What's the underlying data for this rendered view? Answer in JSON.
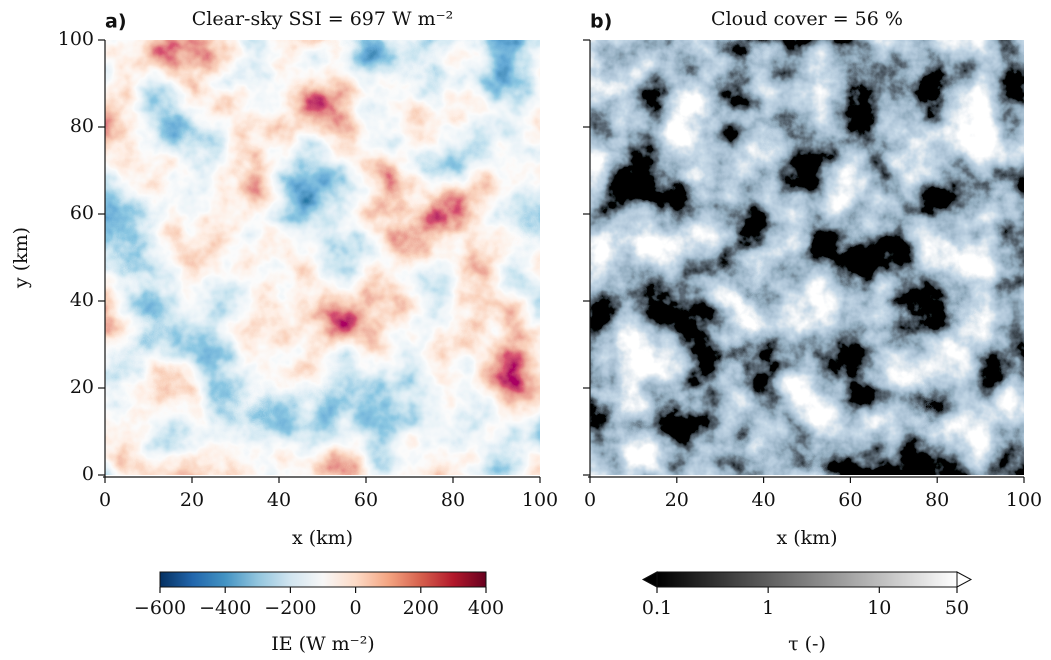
{
  "chart_data": [
    {
      "type": "heatmap",
      "panel_label": "a)",
      "title": "Clear-sky SSI = 697 W m⁻²",
      "xlabel": "x (km)",
      "ylabel": "y (km)",
      "xlim": [
        0,
        100
      ],
      "ylim": [
        0,
        100
      ],
      "xticks": [
        0,
        20,
        40,
        60,
        80,
        100
      ],
      "yticks": [
        0,
        20,
        40,
        60,
        80,
        100
      ],
      "ytick_labels": true,
      "cmap": "RdBu_r",
      "colorbar": {
        "label": "IE (W m⁻²)",
        "lim": [
          -600,
          400
        ],
        "scale": "linear",
        "extend": "neither",
        "ticks": [
          {
            "value": -600,
            "label": "−600"
          },
          {
            "value": -400,
            "label": "−400"
          },
          {
            "value": -200,
            "label": "−200"
          },
          0,
          200,
          400
        ]
      }
    },
    {
      "type": "heatmap",
      "panel_label": "b)",
      "title": "Cloud cover = 56 %",
      "xlabel": "x (km)",
      "xlim": [
        0,
        100
      ],
      "ylim": [
        0,
        100
      ],
      "xticks": [
        0,
        20,
        40,
        60,
        80,
        100
      ],
      "yticks": [
        0,
        20,
        40,
        60,
        80,
        100
      ],
      "ytick_labels": false,
      "cmap": "gray",
      "colorbar": {
        "label": "τ (-)",
        "lim": [
          0.1,
          50
        ],
        "scale": "log",
        "extend": "both",
        "ticks": [
          0.1,
          1,
          10,
          50
        ]
      }
    }
  ]
}
